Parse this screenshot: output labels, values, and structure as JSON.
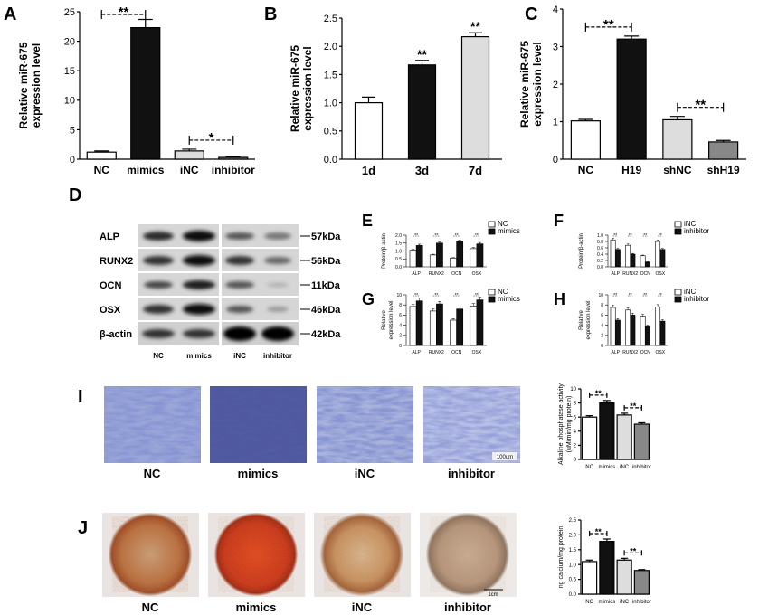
{
  "figure": {
    "panels": {
      "A": "A",
      "B": "B",
      "C": "C",
      "D": "D",
      "E": "E",
      "F": "F",
      "G": "G",
      "H": "H",
      "I": "I",
      "J": "J"
    }
  },
  "chart_data": [
    {
      "id": "A",
      "type": "bar",
      "panel": "A",
      "ylabel": "Relative miR-675\nexpression level",
      "categories": [
        "NC",
        "mimics",
        "iNC",
        "inhibitor"
      ],
      "values": [
        1.2,
        22.3,
        1.4,
        0.3
      ],
      "errors": [
        0.2,
        1.4,
        0.3,
        0.1
      ],
      "colors": [
        "#ffffff",
        "#111111",
        "#dddddd",
        "#888888"
      ],
      "ylim": [
        0,
        25
      ],
      "yticks": [
        "0",
        "5",
        "10",
        "15",
        "20",
        "25"
      ],
      "significance": [
        {
          "from": 0,
          "to": 1,
          "label": "**"
        },
        {
          "from": 2,
          "to": 3,
          "label": "*"
        }
      ]
    },
    {
      "id": "B",
      "type": "bar",
      "panel": "B",
      "ylabel": "Relative miR-675\nexpression level",
      "categories": [
        "1d",
        "3d",
        "7d"
      ],
      "values": [
        1.0,
        1.67,
        2.17
      ],
      "errors": [
        0.1,
        0.08,
        0.07
      ],
      "colors": [
        "#ffffff",
        "#111111",
        "#dddddd"
      ],
      "ylim": [
        0,
        2.5
      ],
      "yticks": [
        "0.0",
        "0.5",
        "1.0",
        "1.5",
        "2.0",
        "2.5"
      ],
      "bar_labels": [
        "",
        "**",
        "**"
      ]
    },
    {
      "id": "C",
      "type": "bar",
      "panel": "C",
      "ylabel": "Relative miR-675\nexpression level",
      "categories": [
        "NC",
        "H19",
        "shNC",
        "shH19"
      ],
      "values": [
        1.02,
        3.2,
        1.05,
        0.46
      ],
      "errors": [
        0.04,
        0.08,
        0.09,
        0.04
      ],
      "colors": [
        "#ffffff",
        "#111111",
        "#dddddd",
        "#888888"
      ],
      "ylim": [
        0,
        4
      ],
      "yticks": [
        "0",
        "1",
        "2",
        "3",
        "4"
      ],
      "significance": [
        {
          "from": 0,
          "to": 1,
          "label": "**"
        },
        {
          "from": 2,
          "to": 3,
          "label": "**"
        }
      ]
    },
    {
      "id": "E",
      "type": "bar",
      "panel": "E",
      "grouped": true,
      "ylabel": "Protein/β-actin",
      "categories": [
        "ALP",
        "RUNX2",
        "OCN",
        "OSX"
      ],
      "series": [
        {
          "name": "NC",
          "values": [
            1.05,
            0.75,
            0.55,
            1.15
          ],
          "color": "#ffffff"
        },
        {
          "name": "mimics",
          "values": [
            1.35,
            1.5,
            1.6,
            1.45
          ],
          "color": "#111111"
        }
      ],
      "ylim": [
        0,
        2.0
      ],
      "yticks": [
        "0.0",
        "0.5",
        "1.0",
        "1.5",
        "2.0"
      ],
      "sig_label": "**"
    },
    {
      "id": "F",
      "type": "bar",
      "panel": "F",
      "grouped": true,
      "ylabel": "Protein/β-actin",
      "categories": [
        "ALP",
        "RUNX2",
        "OCN",
        "OSX"
      ],
      "series": [
        {
          "name": "iNC",
          "values": [
            0.85,
            0.68,
            0.35,
            0.8
          ],
          "color": "#ffffff"
        },
        {
          "name": "inhibitor",
          "values": [
            0.55,
            0.4,
            0.15,
            0.55
          ],
          "color": "#111111"
        }
      ],
      "ylim": [
        0,
        1.0
      ],
      "yticks": [
        "0.0",
        "0.2",
        "0.4",
        "0.6",
        "0.8",
        "1.0"
      ],
      "sig_label": "**"
    },
    {
      "id": "G",
      "type": "bar",
      "panel": "G",
      "grouped": true,
      "ylabel": "Relative\nexpression level",
      "categories": [
        "ALP",
        "RUNX2",
        "OCN",
        "OSX"
      ],
      "series": [
        {
          "name": "NC",
          "values": [
            7.7,
            6.8,
            5.0,
            7.8
          ],
          "color": "#ffffff"
        },
        {
          "name": "mimics",
          "values": [
            8.8,
            8.2,
            7.2,
            9.0
          ],
          "color": "#111111"
        }
      ],
      "ylim": [
        0,
        10
      ],
      "yticks": [
        "0",
        "2",
        "4",
        "6",
        "8",
        "10"
      ],
      "sig_label": "**"
    },
    {
      "id": "H",
      "type": "bar",
      "panel": "H",
      "grouped": true,
      "ylabel": "Relative\nexpression level",
      "categories": [
        "ALP",
        "RUNX2",
        "OCN",
        "OSX"
      ],
      "series": [
        {
          "name": "iNC",
          "values": [
            7.5,
            7.0,
            5.8,
            7.6
          ],
          "color": "#ffffff"
        },
        {
          "name": "inhibitor",
          "values": [
            5.0,
            6.0,
            3.8,
            4.8
          ],
          "color": "#111111"
        }
      ],
      "ylim": [
        0,
        10
      ],
      "yticks": [
        "0",
        "2",
        "4",
        "6",
        "8",
        "10"
      ],
      "sig_label": "**"
    },
    {
      "id": "I",
      "type": "bar",
      "panel": "I",
      "ylabel": "Alkaline phosphatase activity\n(uM/min/mg protein)",
      "categories": [
        "NC",
        "mimics",
        "iNC",
        "inhibitor"
      ],
      "values": [
        6.0,
        8.0,
        6.3,
        5.0
      ],
      "errors": [
        0.2,
        0.35,
        0.25,
        0.2
      ],
      "colors": [
        "#ffffff",
        "#111111",
        "#dddddd",
        "#888888"
      ],
      "ylim": [
        0,
        10
      ],
      "yticks": [
        "0",
        "2",
        "4",
        "6",
        "8",
        "10"
      ],
      "significance": [
        {
          "from": 0,
          "to": 1,
          "label": "**"
        },
        {
          "from": 2,
          "to": 3,
          "label": "**"
        }
      ]
    },
    {
      "id": "J",
      "type": "bar",
      "panel": "J",
      "ylabel": "ng calcium/mg protein",
      "categories": [
        "NC",
        "mimics",
        "iNC",
        "inhibitor"
      ],
      "values": [
        1.1,
        1.78,
        1.15,
        0.8
      ],
      "errors": [
        0.05,
        0.08,
        0.06,
        0.03
      ],
      "colors": [
        "#ffffff",
        "#111111",
        "#dddddd",
        "#888888"
      ],
      "ylim": [
        0,
        2.5
      ],
      "yticks": [
        "0.0",
        "0.5",
        "1.0",
        "1.5",
        "2.0",
        "2.5"
      ],
      "significance": [
        {
          "from": 0,
          "to": 1,
          "label": "**"
        },
        {
          "from": 2,
          "to": 3,
          "label": "**"
        }
      ]
    }
  ],
  "western_blot": {
    "proteins": [
      "ALP",
      "RUNX2",
      "OCN",
      "OSX",
      "β-actin"
    ],
    "sizes": [
      "57kDa",
      "56kDa",
      "11kDa",
      "46kDa",
      "42kDa"
    ],
    "lanes": [
      "NC",
      "mimics",
      "iNC",
      "inhibitor"
    ]
  },
  "images_I": {
    "captions": [
      "NC",
      "mimics",
      "iNC",
      "inhibitor"
    ],
    "scalebar": "100um"
  },
  "images_J": {
    "captions": [
      "NC",
      "mimics",
      "iNC",
      "inhibitor"
    ],
    "scalebar": "1cm"
  },
  "colors": {
    "stain_blue": "#5b6bb8",
    "stain_red": "#c0401f"
  }
}
